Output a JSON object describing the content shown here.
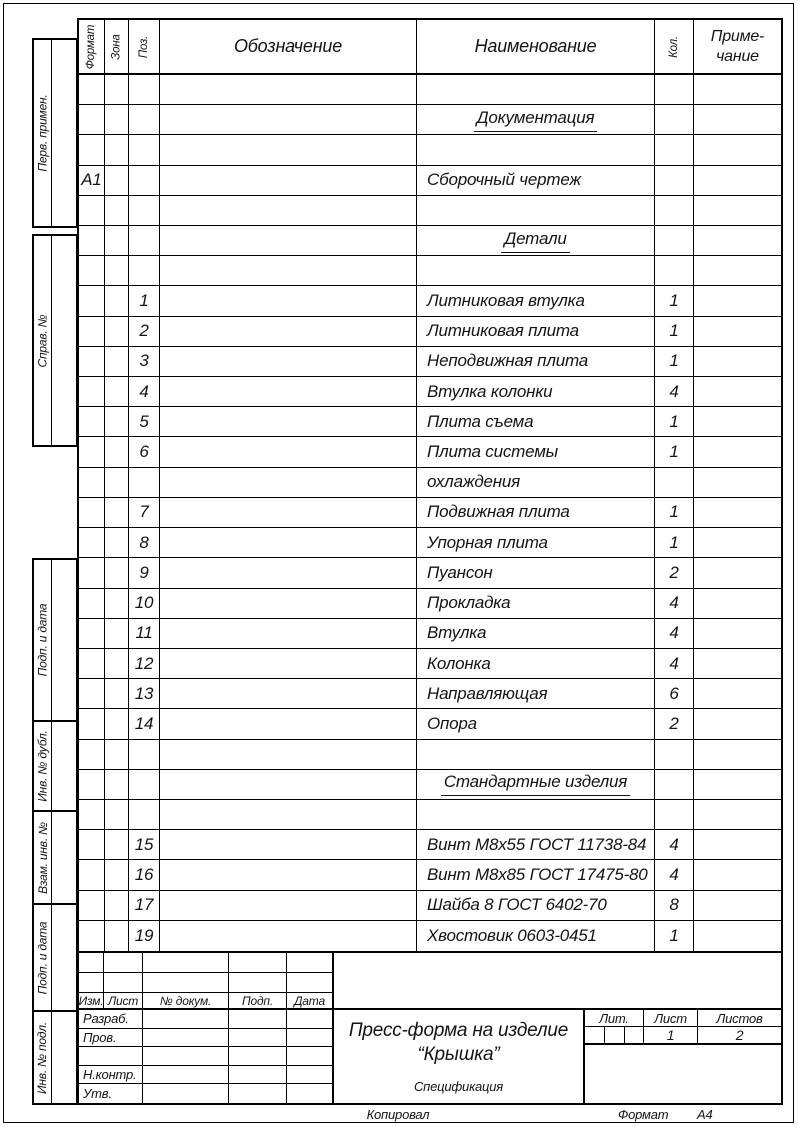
{
  "side_labels": [
    "Перв. примен.",
    "Справ. №",
    "Подп. и дата",
    "Инв. № дубл.",
    "Взам. инв. №",
    "Подп. и дата",
    "Инв. № подл."
  ],
  "table": {
    "headers": {
      "format": "Формат",
      "zone": "Зона",
      "pos": "Поз.",
      "designation": "Обозначение",
      "name": "Наименование",
      "qty": "Кол.",
      "note_line1": "Приме-",
      "note_line2": "чание"
    },
    "rows": [
      {
        "format": "",
        "zone": "",
        "pos": "",
        "designation": "",
        "name": "",
        "qty": "",
        "note": "",
        "type": "empty"
      },
      {
        "format": "",
        "zone": "",
        "pos": "",
        "designation": "",
        "name": "Документация",
        "qty": "",
        "note": "",
        "type": "section"
      },
      {
        "format": "",
        "zone": "",
        "pos": "",
        "designation": "",
        "name": "",
        "qty": "",
        "note": "",
        "type": "empty"
      },
      {
        "format": "А1",
        "zone": "",
        "pos": "",
        "designation": "",
        "name": "Сборочный чертеж",
        "qty": "",
        "note": "",
        "type": "item"
      },
      {
        "format": "",
        "zone": "",
        "pos": "",
        "designation": "",
        "name": "",
        "qty": "",
        "note": "",
        "type": "empty"
      },
      {
        "format": "",
        "zone": "",
        "pos": "",
        "designation": "",
        "name": "Детали",
        "qty": "",
        "note": "",
        "type": "section"
      },
      {
        "format": "",
        "zone": "",
        "pos": "",
        "designation": "",
        "name": "",
        "qty": "",
        "note": "",
        "type": "empty"
      },
      {
        "format": "",
        "zone": "",
        "pos": "1",
        "designation": "",
        "name": "Литниковая втулка",
        "qty": "1",
        "note": "",
        "type": "item"
      },
      {
        "format": "",
        "zone": "",
        "pos": "2",
        "designation": "",
        "name": "Литниковая плита",
        "qty": "1",
        "note": "",
        "type": "item"
      },
      {
        "format": "",
        "zone": "",
        "pos": "3",
        "designation": "",
        "name": "Неподвижная плита",
        "qty": "1",
        "note": "",
        "type": "item"
      },
      {
        "format": "",
        "zone": "",
        "pos": "4",
        "designation": "",
        "name": "Втулка колонки",
        "qty": "4",
        "note": "",
        "type": "item"
      },
      {
        "format": "",
        "zone": "",
        "pos": "5",
        "designation": "",
        "name": "Плита съема",
        "qty": "1",
        "note": "",
        "type": "item"
      },
      {
        "format": "",
        "zone": "",
        "pos": "6",
        "designation": "",
        "name": "Плита системы",
        "qty": "1",
        "note": "",
        "type": "item"
      },
      {
        "format": "",
        "zone": "",
        "pos": "",
        "designation": "",
        "name": "охлаждения",
        "qty": "",
        "note": "",
        "type": "item"
      },
      {
        "format": "",
        "zone": "",
        "pos": "7",
        "designation": "",
        "name": "Подвижная плита",
        "qty": "1",
        "note": "",
        "type": "item"
      },
      {
        "format": "",
        "zone": "",
        "pos": "8",
        "designation": "",
        "name": "Упорная плита",
        "qty": "1",
        "note": "",
        "type": "item"
      },
      {
        "format": "",
        "zone": "",
        "pos": "9",
        "designation": "",
        "name": "Пуансон",
        "qty": "2",
        "note": "",
        "type": "item"
      },
      {
        "format": "",
        "zone": "",
        "pos": "10",
        "designation": "",
        "name": "Прокладка",
        "qty": "4",
        "note": "",
        "type": "item"
      },
      {
        "format": "",
        "zone": "",
        "pos": "11",
        "designation": "",
        "name": "Втулка",
        "qty": "4",
        "note": "",
        "type": "item"
      },
      {
        "format": "",
        "zone": "",
        "pos": "12",
        "designation": "",
        "name": "Колонка",
        "qty": "4",
        "note": "",
        "type": "item"
      },
      {
        "format": "",
        "zone": "",
        "pos": "13",
        "designation": "",
        "name": "Направляющая",
        "qty": "6",
        "note": "",
        "type": "item"
      },
      {
        "format": "",
        "zone": "",
        "pos": "14",
        "designation": "",
        "name": "Опора",
        "qty": "2",
        "note": "",
        "type": "item"
      },
      {
        "format": "",
        "zone": "",
        "pos": "",
        "designation": "",
        "name": "",
        "qty": "",
        "note": "",
        "type": "empty"
      },
      {
        "format": "",
        "zone": "",
        "pos": "",
        "designation": "",
        "name": "Стандартные изделия",
        "qty": "",
        "note": "",
        "type": "section"
      },
      {
        "format": "",
        "zone": "",
        "pos": "",
        "designation": "",
        "name": "",
        "qty": "",
        "note": "",
        "type": "empty"
      },
      {
        "format": "",
        "zone": "",
        "pos": "15",
        "designation": "",
        "name": "Винт М8х55 ГОСТ 11738-84",
        "qty": "4",
        "note": "",
        "type": "item"
      },
      {
        "format": "",
        "zone": "",
        "pos": "16",
        "designation": "",
        "name": "Винт М8х85 ГОСТ 17475-80",
        "qty": "4",
        "note": "",
        "type": "item"
      },
      {
        "format": "",
        "zone": "",
        "pos": "17",
        "designation": "",
        "name": "Шайба 8 ГОСТ 6402-70",
        "qty": "8",
        "note": "",
        "type": "item"
      },
      {
        "format": "",
        "zone": "",
        "pos": "19",
        "designation": "",
        "name": "Хвостовик 0603-0451",
        "qty": "1",
        "note": "",
        "type": "item"
      }
    ]
  },
  "title_block": {
    "revision_headers": [
      "Изм.",
      "Лист",
      "№ докум.",
      "Подп.",
      "Дата"
    ],
    "signature_rows": [
      "Разраб.",
      "Пров.",
      "",
      "Н.контр.",
      "Утв."
    ],
    "title_line1": "Пресс-форма на изделие",
    "title_line2": "“Крышка”",
    "subtitle": "Спецификация",
    "lit_label": "Лит.",
    "sheet_label": "Лист",
    "sheets_label": "Листов",
    "sheet_value": "1",
    "sheets_value": "2"
  },
  "footer": {
    "copy_label": "Копировал",
    "format_label": "Формат",
    "format_value": "А4"
  }
}
